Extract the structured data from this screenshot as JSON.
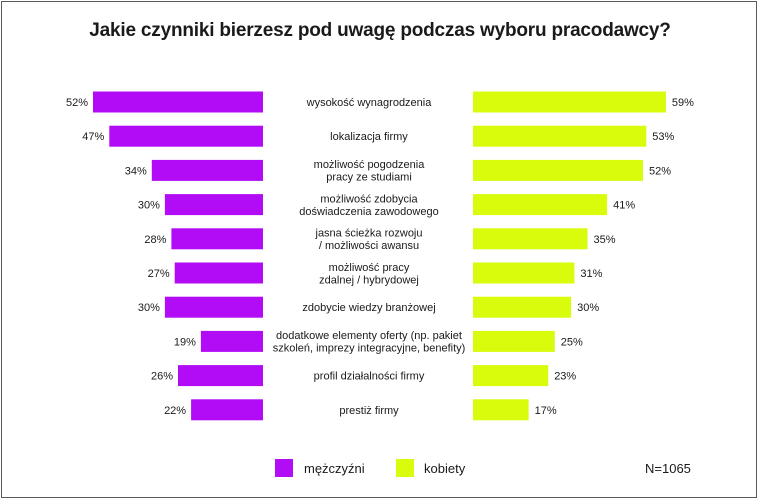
{
  "title": "Jakie czynniki bierzesz pod uwagę podczas wyboru pracodawcy?",
  "note": "N=1065",
  "colors": {
    "men": "#b10cf5",
    "women": "#d9fb0c"
  },
  "chart_data": {
    "type": "bar",
    "title": "Jakie czynniki bierzesz pod uwagę podczas wyboru pracodawcy?",
    "categories": [
      "wysokość wynagrodzenia",
      "lokalizacja firmy",
      "możliwość pogodzenia pracy ze studiami",
      "możliwość zdobycia doświadczenia zawodowego",
      "jasna ścieżka rozwoju / możliwości awansu",
      "możliwość pracy zdalnej / hybrydowej",
      "zdobycie wiedzy branżowej",
      "dodatkowe elementy oferty (np. pakiet szkoleń, imprezy integracyjne, benefity)",
      "profil działalności firmy",
      "prestiż firmy"
    ],
    "category_lines": [
      [
        "wysokość wynagrodzenia"
      ],
      [
        "lokalizacja firmy"
      ],
      [
        "możliwość pogodzenia",
        "pracy ze studiami"
      ],
      [
        "możliwość zdobycia",
        "doświadczenia zawodowego"
      ],
      [
        "jasna ścieżka rozwoju",
        "/ możliwości awansu"
      ],
      [
        "możliwość pracy",
        "zdalnej / hybrydowej"
      ],
      [
        "zdobycie wiedzy branżowej"
      ],
      [
        "dodatkowe elementy oferty (np. pakiet",
        "szkoleń, imprezy integracyjne, benefity)"
      ],
      [
        "profil działalności firmy"
      ],
      [
        "prestiż firmy"
      ]
    ],
    "series": [
      {
        "name": "mężczyźni",
        "values": [
          52,
          47,
          34,
          30,
          28,
          27,
          30,
          19,
          26,
          22
        ]
      },
      {
        "name": "kobiety",
        "values": [
          59,
          53,
          52,
          41,
          35,
          31,
          30,
          25,
          23,
          17
        ]
      }
    ],
    "value_suffix": "%",
    "legend": "bottom"
  }
}
